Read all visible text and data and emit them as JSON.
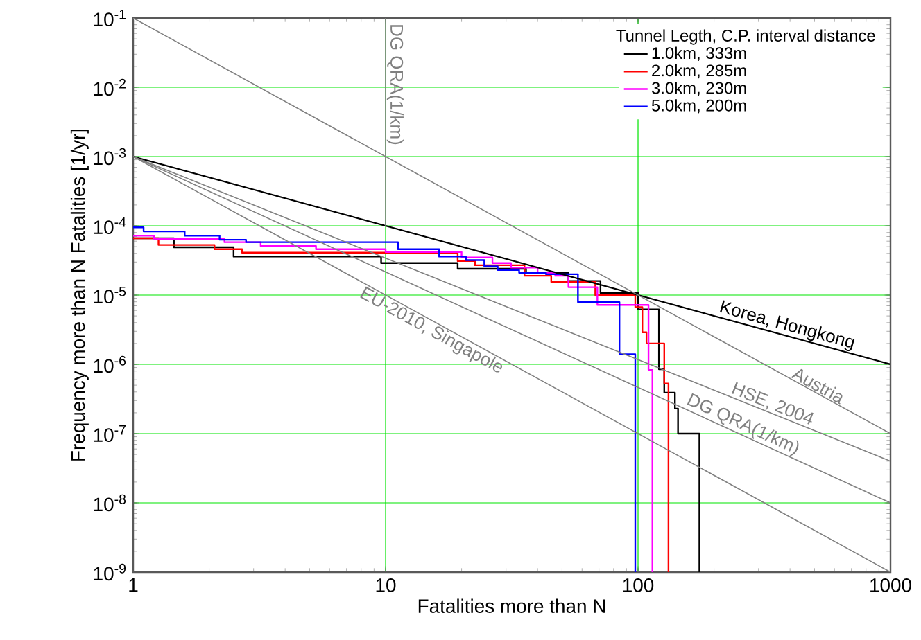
{
  "chart_data": {
    "type": "step",
    "xlabel": "Fatalities more than N",
    "ylabel": "Frequency more than N Fatalities [1/yr]",
    "legend_title": "Tunnel Legth, C.P. interval distance",
    "log": "xy",
    "grid": true,
    "legend": "top right",
    "marker": "none",
    "line_style": "solid",
    "xlim": [
      1,
      1000
    ],
    "ylim": [
      1e-09,
      0.1
    ],
    "xticks": [
      1,
      10,
      100,
      1000
    ],
    "yticks": [
      {
        "value": 1e-09,
        "label": "10$^{-9}$"
      },
      {
        "value": 1e-08,
        "label": "10$^{-8}$"
      },
      {
        "value": 1e-07,
        "label": "10$^{-7}$"
      },
      {
        "value": 1e-06,
        "label": "10$^{-6}$"
      },
      {
        "value": 1e-05,
        "label": "10$^{-5}$"
      },
      {
        "value": 0.0001,
        "label": "10$^{-4}$"
      },
      {
        "value": 0.001,
        "label": "10$^{-3}$"
      },
      {
        "value": 0.01,
        "label": "10$^{-2}$"
      },
      {
        "value": 0.1,
        "label": "10$^{-1}$"
      }
    ],
    "series": [
      {
        "name": "1.0km, 333m",
        "type": "step",
        "color": "#000000",
        "x": [
          1,
          1.45,
          2.5,
          9.6,
          19.3,
          36,
          53,
          71,
          100,
          121,
          127,
          140,
          144,
          175
        ],
        "values": [
          6.6e-05,
          4.9e-05,
          3.6e-05,
          2.9e-05,
          2.4e-05,
          2.1e-05,
          1.6e-05,
          1.07e-05,
          6.2e-06,
          8.5e-07,
          3.9e-07,
          2.3e-07,
          1e-07,
          1e-09
        ]
      },
      {
        "name": "2.0km, 285m",
        "type": "step",
        "color": "#ff0000",
        "x": [
          1,
          1.26,
          2.1,
          2.7,
          19.3,
          22.6,
          35.5,
          45.3,
          67.7,
          97.5,
          104,
          108,
          127,
          132
        ],
        "values": [
          6.6e-05,
          5.3e-05,
          4.6e-05,
          4.1e-05,
          3.1e-05,
          2.7e-05,
          1.9e-05,
          1.55e-05,
          1e-05,
          6.7e-06,
          2.9e-06,
          2e-06,
          5.3e-07,
          1e-09
        ]
      },
      {
        "name": "3.0km, 230m",
        "type": "step",
        "color": "#ff00ff",
        "x": [
          1,
          1.21,
          2.3,
          3.2,
          5.3,
          10,
          20,
          26.5,
          31.4,
          40,
          47,
          53,
          69,
          110,
          114
        ],
        "values": [
          7.2e-05,
          6.5e-05,
          5.8e-05,
          5.1e-05,
          4.6e-05,
          4.2e-05,
          3.5e-05,
          2.9e-05,
          2.5e-05,
          2.1e-05,
          1.9e-05,
          1.3e-05,
          7.2e-06,
          8.3e-07,
          1e-09
        ]
      },
      {
        "name": "5.0km, 200m",
        "type": "step",
        "color": "#0000ff",
        "x": [
          1,
          1.1,
          1.6,
          2.2,
          2.8,
          11.2,
          16.3,
          20.8,
          24.6,
          27.8,
          33.8,
          43.2,
          57.8,
          84.4,
          97.5
        ],
        "values": [
          9.5e-05,
          8.3e-05,
          7.2e-05,
          6.3e-05,
          5.8e-05,
          4.6e-05,
          3.6e-05,
          3.2e-05,
          2.6e-05,
          2.3e-05,
          2.1e-05,
          2e-05,
          7.9e-06,
          1.4e-06,
          1e-09
        ]
      },
      {
        "name": "Korea, Hongkong",
        "type": "line",
        "color": "#000000",
        "x": [
          1,
          1000
        ],
        "values": [
          0.001,
          1e-06
        ]
      },
      {
        "name": "Austria",
        "type": "line",
        "color": "#808080",
        "x": [
          1,
          1000
        ],
        "values": [
          0.1,
          1e-07
        ]
      },
      {
        "name": "HSE, 2004",
        "type": "line",
        "color": "#808080",
        "x": [
          1,
          1000
        ],
        "values": [
          0.001,
          4e-08
        ]
      },
      {
        "name": "DG QRA(1/km)",
        "type": "line",
        "color": "#808080",
        "x": [
          1,
          1000
        ],
        "values": [
          0.001,
          1e-08
        ]
      },
      {
        "name": "EU-2010, Singapole",
        "type": "line",
        "color": "#808080",
        "x": [
          1,
          1000
        ],
        "values": [
          0.001,
          1e-09
        ]
      },
      {
        "name": "DG QRA(1/km)",
        "type": "line",
        "color": "#808080",
        "x": [
          10,
          10
        ],
        "values": [
          0.1,
          0.0001
        ]
      }
    ]
  }
}
